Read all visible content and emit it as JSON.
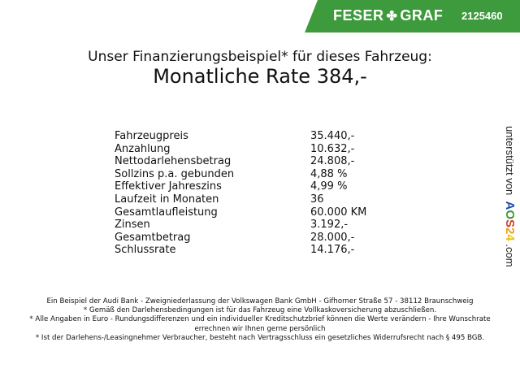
{
  "banner": {
    "brand_left": "FESER",
    "brand_right": "GRAF",
    "code": "2125460",
    "color": "#3d9a3d"
  },
  "title": "Unser Finanzierungsbeispiel* für dieses Fahrzeug:",
  "rate": "Monatliche Rate 384,-",
  "rows": [
    {
      "label": "Fahrzeugpreis",
      "value": "35.440,-"
    },
    {
      "label": "Anzahlung",
      "value": "10.632,-"
    },
    {
      "label": "Nettodarlehensbetrag",
      "value": "24.808,-"
    },
    {
      "label": "Sollzins p.a. gebunden",
      "value": "4,88 %"
    },
    {
      "label": "Effektiver Jahreszins",
      "value": "4,99 %"
    },
    {
      "label": "Laufzeit in Monaten",
      "value": "36"
    },
    {
      "label": "Gesamtlaufleistung",
      "value": "60.000 KM"
    },
    {
      "label": "Zinsen",
      "value": "3.192,-"
    },
    {
      "label": "Gesamtbetrag",
      "value": "28.000,-"
    },
    {
      "label": "Schlussrate",
      "value": "14.176,-"
    }
  ],
  "side": {
    "prefix": "unterstützt von",
    "logo": [
      "A",
      "O",
      "S",
      "2",
      "4"
    ],
    "suffix": ".com",
    "logo_colors": [
      "#1f4fa8",
      "#3a9a3a",
      "#d63a2a",
      "#e8a317",
      "#e8c317"
    ]
  },
  "footer": [
    "Ein Beispiel der Audi Bank - Zweigniederlassung der Volkswagen Bank GmbH - Gifhorner Straße 57 - 38112 Braunschweig",
    "* Gemäß den Darlehensbedingungen ist für das Fahrzeug eine Vollkaskoversicherung abzuschließen.",
    "* Alle Angaben in Euro - Rundungsdifferenzen und ein individueller Kreditschutzbrief können die Werte verändern - Ihre Wunschrate errechnen wir Ihnen gerne persönlich",
    "* Ist der Darlehens-/Leasingnehmer Verbraucher, besteht nach Vertragsschluss ein gesetzliches Widerrufsrecht nach § 495 BGB."
  ]
}
